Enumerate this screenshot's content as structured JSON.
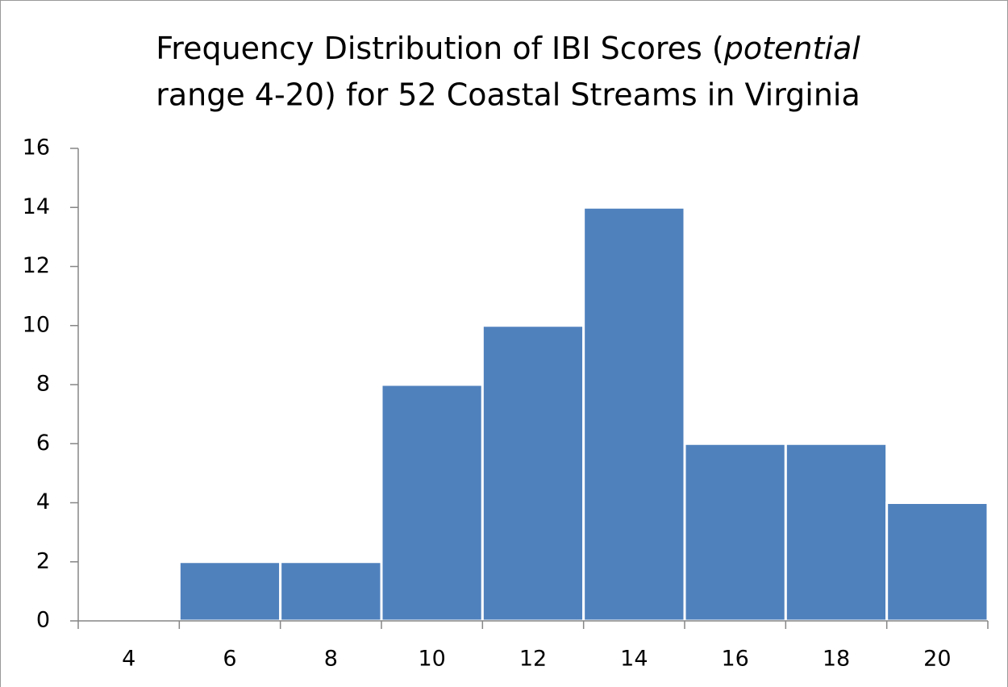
{
  "chart_data": {
    "type": "bar",
    "title": [
      "Frequency Distribution of IBI Scores (",
      "potential",
      "range 4-20) for 52 Coastal Streams in Virginia"
    ],
    "categories": [
      4,
      6,
      8,
      10,
      12,
      14,
      16,
      18,
      20
    ],
    "values": [
      0,
      2,
      2,
      8,
      10,
      14,
      6,
      6,
      4
    ],
    "color": "#4f81bd",
    "ylim": [
      0,
      16
    ],
    "yticks": [
      0,
      2,
      4,
      6,
      8,
      10,
      12,
      14,
      16
    ],
    "grid": false
  }
}
